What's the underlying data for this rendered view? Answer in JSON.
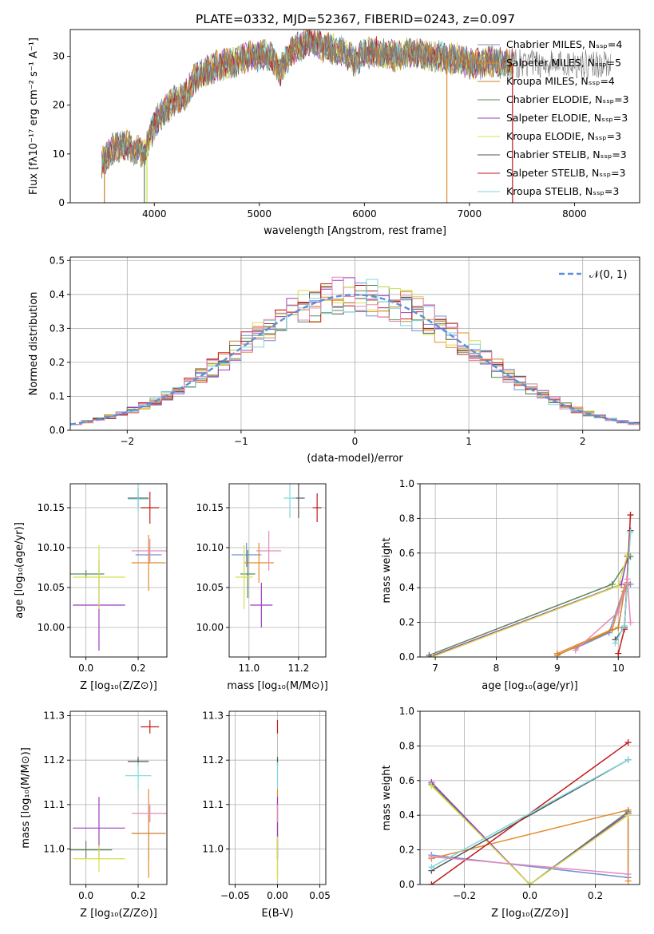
{
  "figure_title": "PLATE=0332, MJD=52367, FIBERID=0243, z=0.097",
  "colors": {
    "series": [
      "#6f8fd8",
      "#e58a2c",
      "#c8812a",
      "#5a8a5a",
      "#9a3fbf",
      "#d4e04a",
      "#555555",
      "#c21b1b",
      "#7fd7dc"
    ],
    "pink": "#e58ab8",
    "gaussian": "#5b8fd8"
  },
  "chart_data": [
    {
      "id": "spectrum",
      "type": "line",
      "xlabel": "wavelength [Angstrom, rest frame]",
      "ylabel": "Flux [fλ10⁻¹⁷ erg cm⁻² s⁻¹ A⁻¹]",
      "xlim": [
        3200,
        8620
      ],
      "ylim": [
        0,
        35.5
      ],
      "xticks": [
        4000,
        5000,
        6000,
        7000,
        8000
      ],
      "yticks": [
        0,
        10,
        20,
        30
      ],
      "legend_position": "top-right",
      "legend": [
        "Chabrier MILES, Nₛₛₚ=4",
        "Salpeter MILES, Nₛₛₚ=5",
        "Kroupa MILES, Nₛₛₚ=4",
        "Chabrier ELODIE, Nₛₛₚ=3",
        "Salpeter ELODIE, Nₛₛₚ=3",
        "Kroupa ELODIE, Nₛₛₚ=3",
        "Chabrier STELIB, Nₛₛₚ=3",
        "Salpeter STELIB, Nₛₛₚ=3",
        "Kroupa STELIB, Nₛₛₚ=3"
      ],
      "continuum_x": [
        3500,
        3600,
        3700,
        3800,
        3900,
        4000,
        4100,
        4200,
        4300,
        4400,
        4500,
        4600,
        4700,
        4800,
        4900,
        5000,
        5100,
        5200,
        5300,
        5400,
        5500,
        5600,
        5700,
        5800,
        5900,
        6000,
        6100,
        6200,
        6300,
        6400,
        6500,
        6600,
        6700,
        6800,
        6900,
        7000,
        7100,
        7200,
        7300,
        7400
      ],
      "continuum_y": [
        8,
        11,
        12,
        11,
        10,
        16,
        19,
        21,
        22,
        26,
        27,
        28,
        28.5,
        29,
        30,
        30,
        30.5,
        27,
        31,
        32,
        33,
        32,
        31.5,
        31,
        29,
        30.5,
        31,
        30.5,
        30,
        30.5,
        30.5,
        30,
        30,
        29.5,
        29.5,
        28.5,
        28.5,
        29,
        28.5,
        28.5
      ]
    },
    {
      "id": "residuals",
      "type": "histogram",
      "xlabel": "(data-model)/error",
      "ylabel": "Normed distribution",
      "xlim": [
        -2.5,
        2.5
      ],
      "ylim": [
        0,
        0.51
      ],
      "xticks": [
        -2,
        -1,
        0,
        1,
        2
      ],
      "yticks": [
        0.0,
        0.1,
        0.2,
        0.3,
        0.4,
        0.5
      ],
      "bin_width": 0.1,
      "reference_curve": "𝒩(0, 1)",
      "legend_position": "top-right"
    },
    {
      "id": "age-vs-Z",
      "type": "scatter",
      "xlabel": "Z [log₁₀(Z/Z⊙)]",
      "ylabel": "age  [log₁₀(age/yr)]",
      "xlim": [
        -0.06,
        0.31
      ],
      "ylim": [
        9.963,
        10.18
      ],
      "xticks": [
        0.0,
        0.2
      ],
      "yticks": [
        10.0,
        10.05,
        10.1,
        10.15
      ],
      "points": [
        {
          "x": 0.24,
          "xerr": 0.05,
          "y": 10.091,
          "yerr": 0.01,
          "series": 0
        },
        {
          "x": 0.24,
          "xerr": 0.065,
          "y": 10.081,
          "yerr": 0.035,
          "series": 1
        },
        {
          "x": 0.0,
          "xerr": 0.07,
          "y": 10.067,
          "yerr": 0.005,
          "series": 3
        },
        {
          "x": 0.05,
          "xerr": 0.1,
          "y": 10.028,
          "yerr": 0.057,
          "series": 4
        },
        {
          "x": 0.05,
          "xerr": 0.1,
          "y": 10.063,
          "yerr": 0.04,
          "series": 5
        },
        {
          "x": 0.2,
          "xerr": 0.04,
          "y": 10.162,
          "yerr": 0.012,
          "series": 6
        },
        {
          "x": 0.245,
          "xerr": 0.035,
          "y": 10.15,
          "yerr": 0.02,
          "series": 7
        },
        {
          "x": 0.2,
          "xerr": 0.04,
          "y": 10.161,
          "yerr": 0.018,
          "series": 8
        },
        {
          "x": 0.245,
          "xerr": 0.07,
          "y": 10.096,
          "yerr": 0.015,
          "series": "pink"
        }
      ]
    },
    {
      "id": "age-vs-mass",
      "type": "scatter",
      "xlabel": "mass [log₁₀(M/M⊙)]",
      "ylabel": "",
      "xlim": [
        10.92,
        11.31
      ],
      "ylim": [
        9.963,
        10.18
      ],
      "xticks": [
        11.0,
        11.2
      ],
      "yticks": [
        10.0,
        10.05,
        10.1,
        10.15
      ],
      "points": [
        {
          "x": 10.99,
          "xerr": 0.06,
          "y": 10.091,
          "yerr": 0.015,
          "series": 0
        },
        {
          "x": 11.04,
          "xerr": 0.06,
          "y": 10.081,
          "yerr": 0.025,
          "series": 1
        },
        {
          "x": 10.995,
          "xerr": 0.03,
          "y": 10.067,
          "yerr": 0.03,
          "series": 3
        },
        {
          "x": 11.05,
          "xerr": 0.045,
          "y": 10.028,
          "yerr": 0.028,
          "series": 4
        },
        {
          "x": 10.98,
          "xerr": 0.035,
          "y": 10.063,
          "yerr": 0.04,
          "series": 5
        },
        {
          "x": 11.2,
          "xerr": 0.025,
          "y": 10.162,
          "yerr": 0.025,
          "series": 6
        },
        {
          "x": 11.275,
          "xerr": 0.018,
          "y": 10.15,
          "yerr": 0.018,
          "series": 7
        },
        {
          "x": 11.165,
          "xerr": 0.025,
          "y": 10.162,
          "yerr": 0.025,
          "series": 8
        },
        {
          "x": 11.08,
          "xerr": 0.05,
          "y": 10.096,
          "yerr": 0.025,
          "series": "pink"
        }
      ]
    },
    {
      "id": "weight-vs-age",
      "type": "line",
      "xlabel": "age  [log₁₀(age/yr)]",
      "ylabel": "mass weight",
      "xlim": [
        6.75,
        10.35
      ],
      "ylim": [
        0,
        1.0
      ],
      "xticks": [
        7,
        8,
        9,
        10
      ],
      "yticks": [
        0.0,
        0.2,
        0.4,
        0.6,
        0.8,
        1.0
      ],
      "series": [
        {
          "series": 0,
          "x": [
            9.3,
            9.85,
            10.1,
            10.2
          ],
          "y": [
            0.05,
            0.14,
            0.4,
            0.42
          ]
        },
        {
          "series": 1,
          "x": [
            9.0,
            9.9,
            10.1,
            10.15
          ],
          "y": [
            0.02,
            0.16,
            0.4,
            0.43
          ]
        },
        {
          "series": 2,
          "x": [
            9.0,
            10.0,
            10.1,
            10.15
          ],
          "y": [
            0.01,
            0.17,
            0.38,
            0.42
          ]
        },
        {
          "series": 3,
          "x": [
            6.9,
            9.9,
            10.2
          ],
          "y": [
            0.01,
            0.42,
            0.58
          ]
        },
        {
          "series": 4,
          "x": [
            6.9,
            10.05,
            10.15
          ],
          "y": [
            0.0,
            0.42,
            0.58
          ]
        },
        {
          "series": 5,
          "x": [
            6.95,
            10.0,
            10.15
          ],
          "y": [
            0.0,
            0.41,
            0.59
          ]
        },
        {
          "series": 6,
          "x": [
            9.95,
            10.1,
            10.2
          ],
          "y": [
            0.1,
            0.17,
            0.73
          ]
        },
        {
          "series": 7,
          "x": [
            10.0,
            10.1,
            10.2
          ],
          "y": [
            0.02,
            0.16,
            0.82
          ]
        },
        {
          "series": 8,
          "x": [
            9.95,
            10.1,
            10.2
          ],
          "y": [
            0.08,
            0.18,
            0.72
          ]
        },
        {
          "series": "pink",
          "x": [
            9.3,
            10.0,
            10.15,
            10.2
          ],
          "y": [
            0.04,
            0.26,
            0.45,
            0.2
          ]
        }
      ]
    },
    {
      "id": "mass-vs-Z",
      "type": "scatter",
      "xlabel": "Z [log₁₀(Z/Z⊙)]",
      "ylabel": "mass [log₁₀(M/M⊙)]",
      "xlim": [
        -0.06,
        0.31
      ],
      "ylim": [
        10.92,
        11.31
      ],
      "xticks": [
        0.0,
        0.2
      ],
      "yticks": [
        11.0,
        11.1,
        11.2,
        11.3
      ],
      "points": [
        {
          "x": 0.24,
          "xerr": 0.065,
          "y": 11.035,
          "yerr": 0.06,
          "series": 0
        },
        {
          "x": 0.24,
          "xerr": 0.065,
          "y": 11.035,
          "yerr": 0.1,
          "series": 1
        },
        {
          "x": 0.0,
          "xerr": 0.1,
          "y": 10.998,
          "yerr": 0.02,
          "series": 3
        },
        {
          "x": 0.05,
          "xerr": 0.1,
          "y": 11.047,
          "yerr": 0.07,
          "series": 4
        },
        {
          "x": 0.05,
          "xerr": 0.1,
          "y": 10.978,
          "yerr": 0.03,
          "series": 5
        },
        {
          "x": 0.2,
          "xerr": 0.04,
          "y": 11.197,
          "yerr": 0.01,
          "series": 6
        },
        {
          "x": 0.245,
          "xerr": 0.035,
          "y": 11.275,
          "yerr": 0.015,
          "series": 7
        },
        {
          "x": 0.2,
          "xerr": 0.05,
          "y": 11.165,
          "yerr": 0.03,
          "series": 8
        },
        {
          "x": 0.245,
          "xerr": 0.07,
          "y": 11.08,
          "yerr": 0.02,
          "series": "pink"
        }
      ]
    },
    {
      "id": "mass-vs-EBV",
      "type": "scatter",
      "xlabel": "E(B-V)",
      "ylabel": "",
      "xlim": [
        -0.057,
        0.057
      ],
      "ylim": [
        10.92,
        11.31
      ],
      "xticks": [
        -0.05,
        0.0,
        0.05
      ],
      "yticks": [
        11.0,
        11.1,
        11.2,
        11.3
      ],
      "points": [
        {
          "x": 0.0,
          "xerr": 0.0,
          "y": 11.035,
          "yerr": 0.06,
          "series": 0
        },
        {
          "x": 0.0,
          "xerr": 0.0,
          "y": 11.035,
          "yerr": 0.1,
          "series": 1
        },
        {
          "x": 0.0,
          "xerr": 0.0,
          "y": 10.998,
          "yerr": 0.02,
          "series": 3
        },
        {
          "x": 0.0,
          "xerr": 0.0,
          "y": 11.047,
          "yerr": 0.07,
          "series": 4
        },
        {
          "x": 0.0,
          "xerr": 0.0,
          "y": 10.978,
          "yerr": 0.05,
          "series": 5
        },
        {
          "x": 0.0,
          "xerr": 0.0,
          "y": 11.197,
          "yerr": 0.01,
          "series": 6
        },
        {
          "x": 0.0,
          "xerr": 0.0,
          "y": 11.275,
          "yerr": 0.015,
          "series": 7
        },
        {
          "x": 0.0,
          "xerr": 0.0,
          "y": 11.165,
          "yerr": 0.03,
          "series": 8
        },
        {
          "x": 0.0,
          "xerr": 0.0,
          "y": 11.08,
          "yerr": 0.02,
          "series": "pink"
        }
      ]
    },
    {
      "id": "weight-vs-Z",
      "type": "line",
      "xlabel": "Z [log₁₀(Z/Z⊙)]",
      "ylabel": "mass weight",
      "xlim": [
        -0.335,
        0.335
      ],
      "ylim": [
        0,
        1.0
      ],
      "xticks": [
        -0.2,
        0.0,
        0.2
      ],
      "yticks": [
        0.0,
        0.2,
        0.4,
        0.6,
        0.8,
        1.0
      ],
      "series": [
        {
          "series": 0,
          "x": [
            -0.3,
            0.3,
            0.3
          ],
          "y": [
            0.17,
            0.04,
            0.4
          ]
        },
        {
          "series": 1,
          "x": [
            -0.3,
            0.3,
            0.3
          ],
          "y": [
            0.15,
            0.43,
            0.02
          ]
        },
        {
          "series": 3,
          "x": [
            -0.3,
            0.0,
            0.3
          ],
          "y": [
            0.58,
            0.0,
            0.42
          ]
        },
        {
          "series": 4,
          "x": [
            -0.3,
            0.0,
            0.3
          ],
          "y": [
            0.59,
            0.0,
            0.41
          ]
        },
        {
          "series": 5,
          "x": [
            -0.3,
            0.0,
            0.3
          ],
          "y": [
            0.57,
            0.0,
            0.4
          ]
        },
        {
          "series": 6,
          "x": [
            -0.3,
            0.3
          ],
          "y": [
            0.08,
            0.72
          ]
        },
        {
          "series": 7,
          "x": [
            -0.3,
            0.3
          ],
          "y": [
            0.0,
            0.82
          ]
        },
        {
          "series": 8,
          "x": [
            -0.3,
            0.3
          ],
          "y": [
            0.1,
            0.72
          ]
        },
        {
          "series": "pink",
          "x": [
            -0.3,
            0.3
          ],
          "y": [
            0.16,
            0.06
          ]
        }
      ]
    }
  ]
}
